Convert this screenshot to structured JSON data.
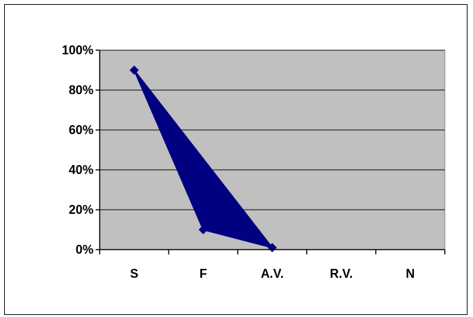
{
  "chart_data": {
    "type": "area",
    "categories": [
      "S",
      "F",
      "A.V.",
      "R.V.",
      "N"
    ],
    "series": [
      {
        "values": [
          90,
          10,
          1,
          null,
          null
        ],
        "color": "#000080"
      }
    ],
    "ylim": [
      0,
      100
    ],
    "yticks": [
      0,
      20,
      40,
      60,
      80,
      100
    ],
    "ytick_labels": [
      "0%",
      "20%",
      "40%",
      "60%",
      "80%",
      "100%"
    ],
    "y_unit": "%",
    "grid": true,
    "legend": "none",
    "plot_background": "#c0c0c0",
    "marker": "diamond"
  }
}
